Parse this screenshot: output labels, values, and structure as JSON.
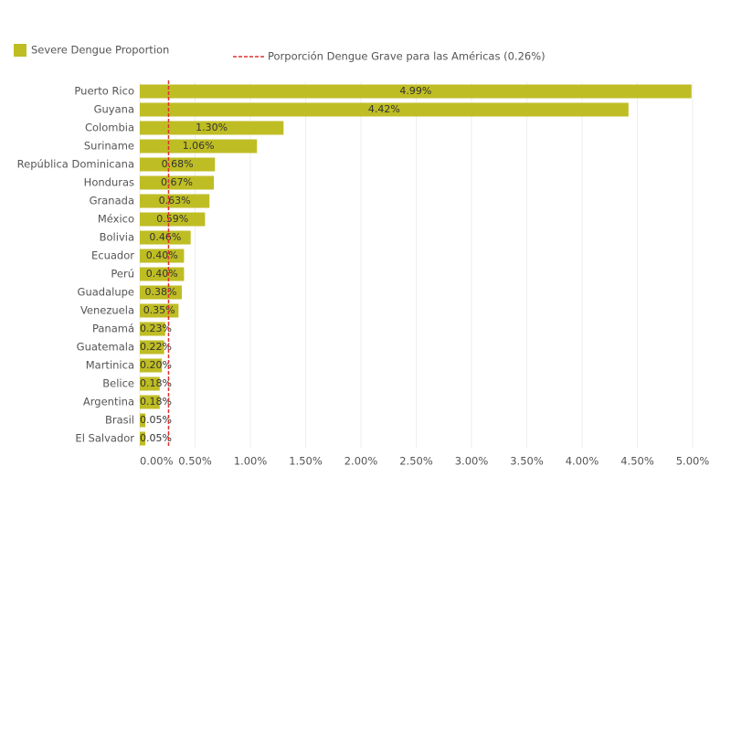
{
  "chart_data": {
    "type": "bar",
    "orientation": "horizontal",
    "legend_label": "Severe Dengue Proportion",
    "categories": [
      "Puerto Rico",
      "Guyana",
      "Colombia",
      "Suriname",
      "República Dominicana",
      "Honduras",
      "Granada",
      "México",
      "Bolivia",
      "Ecuador",
      "Perú",
      "Guadalupe",
      "Venezuela",
      "Panamá",
      "Guatemala",
      "Martinica",
      "Belice",
      "Argentina",
      "Brasil",
      "El Salvador"
    ],
    "values": [
      4.99,
      4.42,
      1.3,
      1.06,
      0.68,
      0.67,
      0.63,
      0.59,
      0.46,
      0.4,
      0.4,
      0.38,
      0.35,
      0.23,
      0.22,
      0.2,
      0.18,
      0.18,
      0.05,
      0.05
    ],
    "value_labels": [
      "4.99%",
      "4.42%",
      "1.30%",
      "1.06%",
      "0.68%",
      "0.67%",
      "0.63%",
      "0.59%",
      "0.46%",
      "0.40%",
      "0.40%",
      "0.38%",
      "0.35%",
      "0.23%",
      "0.22%",
      "0.20%",
      "0.18%",
      "0.18%",
      "0.05%",
      "0.05%"
    ],
    "color": "#bfbd24",
    "xlim": [
      0,
      5
    ],
    "xticks": [
      {
        "value": 0,
        "label": "0.00%"
      },
      {
        "value": 0.5,
        "label": "0.50%"
      },
      {
        "value": 1,
        "label": "1.00%"
      },
      {
        "value": 1.5,
        "label": "1.50%"
      },
      {
        "value": 2,
        "label": "2.00%"
      },
      {
        "value": 2.5,
        "label": "2.50%"
      },
      {
        "value": 3,
        "label": "3.00%"
      },
      {
        "value": 3.5,
        "label": "3.50%"
      },
      {
        "value": 4,
        "label": "4.00%"
      },
      {
        "value": 4.5,
        "label": "4.50%"
      },
      {
        "value": 5,
        "label": "5.00%"
      }
    ],
    "grid": true,
    "reference_line": {
      "label": "Porporción Dengue Grave para las Américas (0.26%)",
      "value": 0.26,
      "color": "#e03030"
    }
  }
}
